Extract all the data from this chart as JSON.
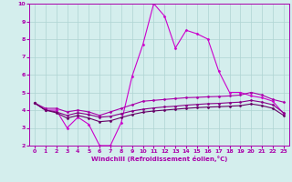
{
  "xlabel": "Windchill (Refroidissement éolien,°C)",
  "xlim": [
    -0.5,
    23.5
  ],
  "ylim": [
    2,
    10
  ],
  "xticks": [
    0,
    1,
    2,
    3,
    4,
    5,
    6,
    7,
    8,
    9,
    10,
    11,
    12,
    13,
    14,
    15,
    16,
    17,
    18,
    19,
    20,
    21,
    22,
    23
  ],
  "yticks": [
    2,
    3,
    4,
    5,
    6,
    7,
    8,
    9,
    10
  ],
  "bg_color": "#d4eeed",
  "grid_color": "#aed4d2",
  "line_color": "#aa00aa",
  "line_color2": "#660066",
  "lines": [
    {
      "x": [
        0,
        1,
        2,
        3,
        4,
        5,
        6,
        7,
        8,
        9,
        10,
        11,
        12,
        13,
        14,
        15,
        16,
        17,
        18,
        19,
        20,
        21,
        22,
        23
      ],
      "y": [
        4.4,
        4.0,
        4.0,
        3.0,
        3.6,
        3.2,
        2.0,
        2.0,
        3.3,
        5.9,
        7.7,
        10.0,
        9.3,
        7.5,
        8.5,
        8.3,
        8.0,
        6.2,
        5.0,
        5.0,
        4.8,
        4.7,
        4.5,
        3.8
      ],
      "color": "#cc00cc"
    },
    {
      "x": [
        0,
        1,
        2,
        3,
        4,
        5,
        6,
        7,
        8,
        9,
        10,
        11,
        12,
        13,
        14,
        15,
        16,
        17,
        18,
        19,
        20,
        21,
        22,
        23
      ],
      "y": [
        4.4,
        4.1,
        4.1,
        3.9,
        4.0,
        3.9,
        3.7,
        3.9,
        4.1,
        4.3,
        4.5,
        4.55,
        4.6,
        4.65,
        4.7,
        4.72,
        4.75,
        4.77,
        4.8,
        4.85,
        5.0,
        4.85,
        4.6,
        4.45
      ],
      "color": "#aa00aa"
    },
    {
      "x": [
        0,
        1,
        2,
        3,
        4,
        5,
        6,
        7,
        8,
        9,
        10,
        11,
        12,
        13,
        14,
        15,
        16,
        17,
        18,
        19,
        20,
        21,
        22,
        23
      ],
      "y": [
        4.4,
        4.0,
        3.9,
        3.7,
        3.85,
        3.75,
        3.6,
        3.65,
        3.8,
        3.95,
        4.05,
        4.12,
        4.18,
        4.22,
        4.28,
        4.32,
        4.36,
        4.38,
        4.42,
        4.45,
        4.55,
        4.45,
        4.3,
        3.85
      ],
      "color": "#880088"
    },
    {
      "x": [
        0,
        1,
        2,
        3,
        4,
        5,
        6,
        7,
        8,
        9,
        10,
        11,
        12,
        13,
        14,
        15,
        16,
        17,
        18,
        19,
        20,
        21,
        22,
        23
      ],
      "y": [
        4.4,
        4.0,
        3.85,
        3.55,
        3.7,
        3.55,
        3.35,
        3.4,
        3.58,
        3.75,
        3.88,
        3.95,
        4.0,
        4.05,
        4.1,
        4.14,
        4.17,
        4.19,
        4.22,
        4.25,
        4.35,
        4.25,
        4.1,
        3.7
      ],
      "color": "#660066"
    }
  ]
}
